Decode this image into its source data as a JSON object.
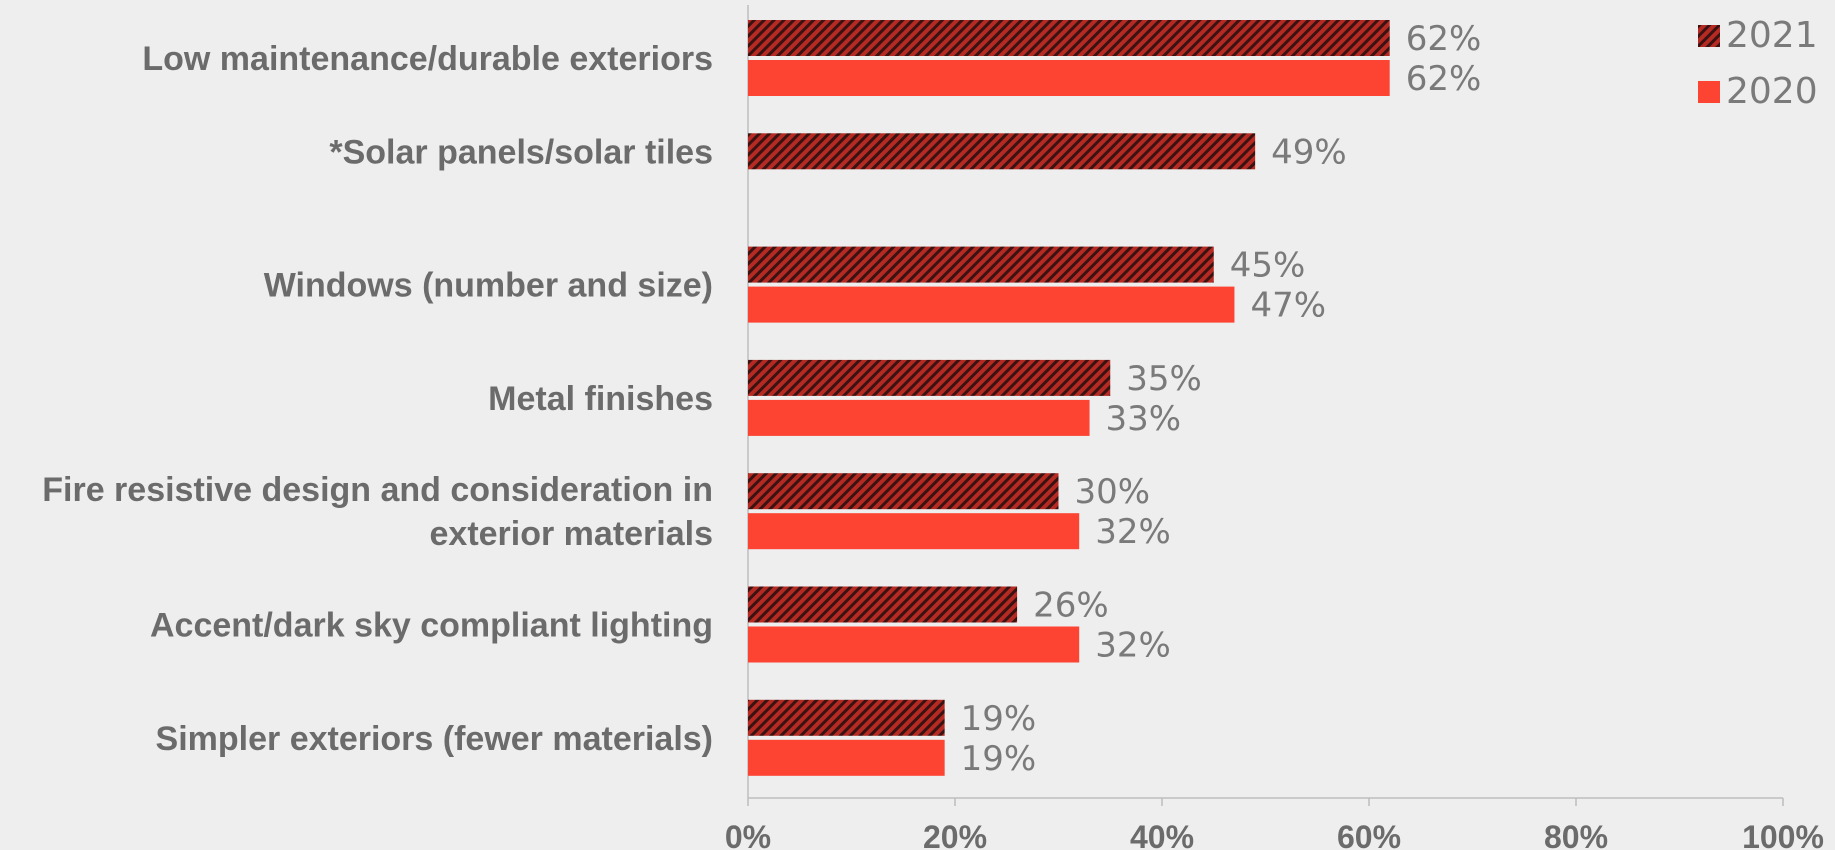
{
  "chart_data": {
    "type": "bar",
    "orientation": "horizontal",
    "categories": [
      [
        "Low maintenance/durable exteriors"
      ],
      [
        "*Solar panels/solar tiles"
      ],
      [
        "Windows (number and size)"
      ],
      [
        "Metal finishes"
      ],
      [
        "Fire resistive design and consideration in",
        "exterior materials"
      ],
      [
        "Accent/dark sky compliant lighting"
      ],
      [
        "Simpler exteriors (fewer materials)"
      ]
    ],
    "series": [
      {
        "name": "2021",
        "values": [
          62,
          49,
          45,
          35,
          30,
          26,
          19
        ],
        "labels": [
          "62%",
          "49%",
          "45%",
          "35%",
          "30%",
          "26%",
          "19%"
        ]
      },
      {
        "name": "2020",
        "values": [
          62,
          null,
          47,
          33,
          32,
          32,
          19
        ],
        "labels": [
          "62%",
          null,
          "47%",
          "33%",
          "32%",
          "32%",
          "19%"
        ]
      }
    ],
    "xlim": [
      0,
      100
    ],
    "xticks": [
      "0%",
      "20%",
      "40%",
      "60%",
      "80%",
      "100%"
    ],
    "legend_position": "top-right",
    "grid": false,
    "colors": {
      "2021_fill": "#b52a22",
      "2021_stripe": "#3a1212",
      "2020_fill": "#fd4332",
      "axis": "#bdbdbd",
      "text": "#6b6b6b",
      "value_text": "#7a7a7a"
    }
  }
}
